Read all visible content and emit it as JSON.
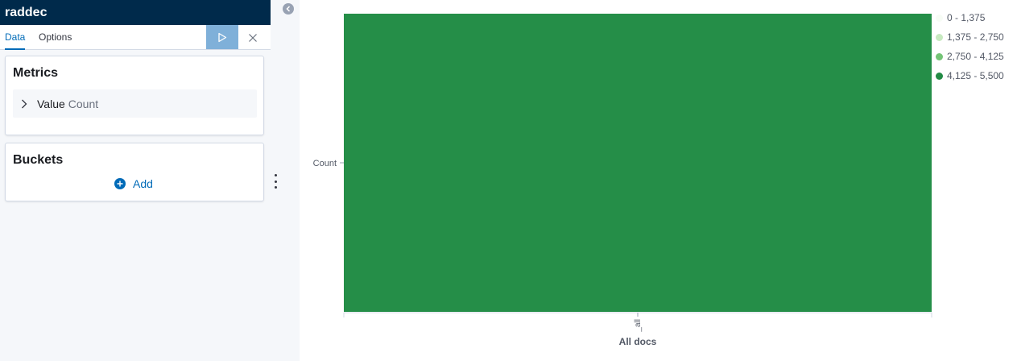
{
  "sidebar": {
    "title": "raddec",
    "tabs": [
      {
        "label": "Data",
        "active": true
      },
      {
        "label": "Options",
        "active": false
      }
    ],
    "metrics": {
      "title": "Metrics",
      "items": [
        {
          "label": "Value",
          "sublabel": "Count"
        }
      ]
    },
    "buckets": {
      "title": "Buckets",
      "add_label": "Add"
    }
  },
  "colors": {
    "accent": "#006bb8",
    "run_button": "#7fb0d9",
    "header": "#002a4b"
  },
  "chart_data": {
    "type": "heatmap",
    "x": [
      "_all"
    ],
    "xlabel": "All docs",
    "y": [
      "Count"
    ],
    "values": [
      [
        5500
      ]
    ],
    "cell_color": "#258e48",
    "legend": [
      {
        "label": "0 - 1,375",
        "color": "#f7fcf5"
      },
      {
        "label": "1,375 - 2,750",
        "color": "#c7e9c0"
      },
      {
        "label": "2,750 - 4,125",
        "color": "#74c476"
      },
      {
        "label": "4,125 - 5,500",
        "color": "#238b45"
      }
    ],
    "legend_position": "right"
  }
}
